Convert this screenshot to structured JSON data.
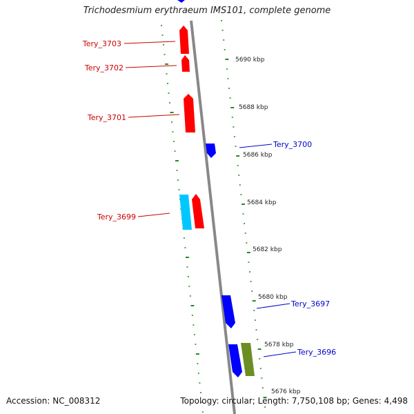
{
  "title": "Trichodesmium erythraeum IMS101, complete genome",
  "footer": {
    "accession": "Accession: NC_008312",
    "summary": "Topology: circular; Length: 7,750,108 bp; Genes: 4,498"
  },
  "colors": {
    "backbone": "#888888",
    "ruler": "#228b22",
    "forward_gene": "#ff0000",
    "reverse_gene": "#0000ff",
    "cyan_gene": "#00c8ff",
    "olive_gene": "#6b8e23",
    "forward_label": "#cc0000",
    "reverse_label": "#0000cc"
  },
  "scale_labels": [
    "5690 kbp",
    "5688 kbp",
    "5686 kbp",
    "5684 kbp",
    "5682 kbp",
    "5680 kbp",
    "5678 kbp",
    "5676 kbp"
  ],
  "gene_labels_forward": [
    "Tery_3703",
    "Tery_3702",
    "Tery_3701",
    "Tery_3699"
  ],
  "gene_labels_reverse": [
    "Tery_3700",
    "Tery_3697",
    "Tery_3696"
  ]
}
